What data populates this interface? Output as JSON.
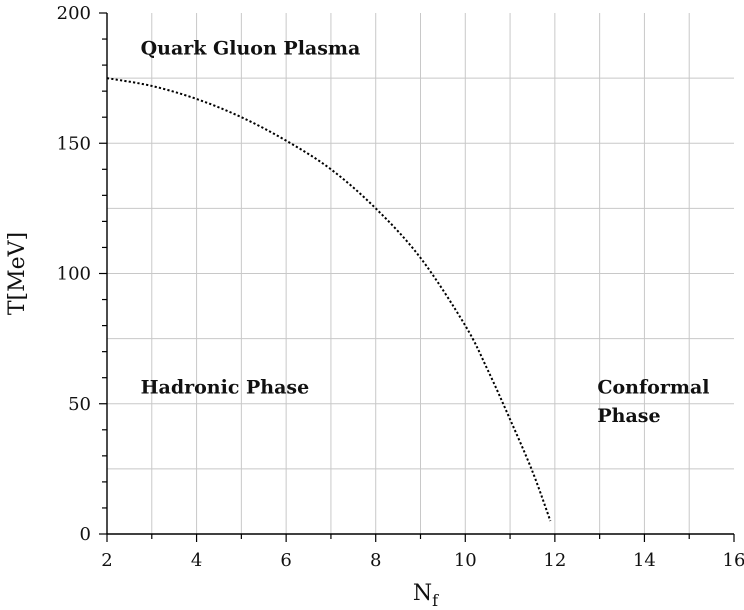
{
  "chart_data": {
    "type": "line",
    "title": "",
    "xlabel": "N",
    "xlabel_subscript": "f",
    "ylabel": "T[MeV]",
    "xlim": [
      2,
      16
    ],
    "ylim": [
      0,
      200
    ],
    "x_ticks": [
      2,
      4,
      6,
      8,
      10,
      12,
      14,
      16
    ],
    "y_ticks": [
      0,
      50,
      100,
      150,
      200
    ],
    "grid": true,
    "series": [
      {
        "style": "dotted",
        "color": "#000000",
        "x": [
          2.0,
          3.0,
          4.0,
          5.0,
          6.0,
          7.0,
          8.0,
          9.0,
          10.0,
          10.5,
          11.0,
          11.5,
          11.9
        ],
        "y": [
          175,
          172,
          167,
          160,
          151,
          140,
          125,
          106,
          80,
          63,
          44,
          24,
          5
        ]
      }
    ],
    "annotations": [
      {
        "text": "Quark Gluon Plasma",
        "x": 2.75,
        "y": 184
      },
      {
        "text": "Hadronic  Phase",
        "x": 2.75,
        "y": 54
      },
      {
        "text": "Conformal",
        "x": 12.95,
        "y": 54
      },
      {
        "text": "Phase",
        "x": 12.95,
        "y": 43
      }
    ]
  }
}
